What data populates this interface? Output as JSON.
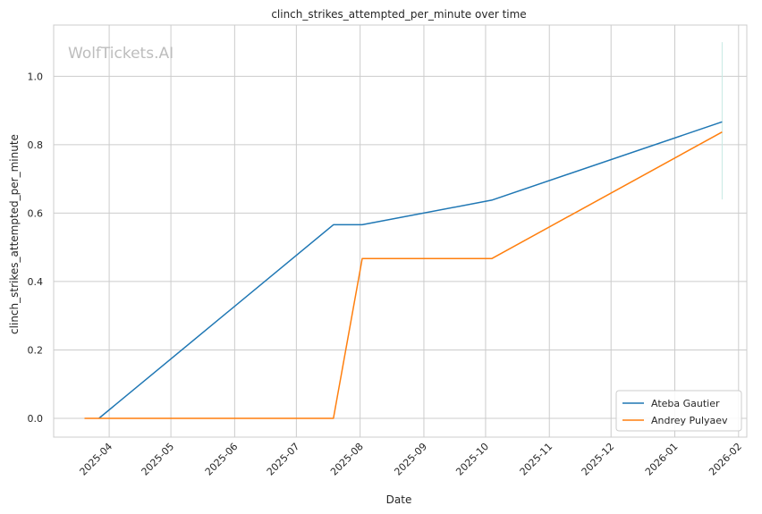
{
  "watermark": "WolfTickets.AI",
  "chart_data": {
    "type": "line",
    "title": "clinch_strikes_attempted_per_minute over time",
    "xlabel": "Date",
    "ylabel": "clinch_strikes_attempted_per_minute",
    "x_type": "date",
    "xlim": [
      "2025-03-05",
      "2026-02-05"
    ],
    "ylim": [
      -0.055,
      1.15
    ],
    "x_ticks": [
      "2025-04-01",
      "2025-05-01",
      "2025-06-01",
      "2025-07-01",
      "2025-08-01",
      "2025-09-01",
      "2025-10-01",
      "2025-11-01",
      "2025-12-01",
      "2026-01-01",
      "2026-02-01"
    ],
    "x_tick_labels": [
      "2025-04",
      "2025-05",
      "2025-06",
      "2025-07",
      "2025-08",
      "2025-09",
      "2025-10",
      "2025-11",
      "2025-12",
      "2026-01",
      "2026-02"
    ],
    "y_ticks": [
      0.0,
      0.2,
      0.4,
      0.6,
      0.8,
      1.0
    ],
    "y_tick_labels": [
      "0.0",
      "0.2",
      "0.4",
      "0.6",
      "0.8",
      "1.0"
    ],
    "grid": true,
    "legend_position": "bottom-right",
    "series": [
      {
        "name": "Ateba Gautier",
        "color": "#1f77b4",
        "points": [
          {
            "x": "2025-03-27",
            "y": 0.0
          },
          {
            "x": "2025-07-19",
            "y": 0.566
          },
          {
            "x": "2025-08-02",
            "y": 0.566
          },
          {
            "x": "2025-10-04",
            "y": 0.638
          },
          {
            "x": "2026-01-24",
            "y": 0.867
          }
        ]
      },
      {
        "name": "Andrey Pulyaev",
        "color": "#ff7f0e",
        "points": [
          {
            "x": "2025-03-20",
            "y": 0.0
          },
          {
            "x": "2025-07-19",
            "y": 0.0
          },
          {
            "x": "2025-08-02",
            "y": 0.467
          },
          {
            "x": "2025-10-04",
            "y": 0.467
          },
          {
            "x": "2026-01-24",
            "y": 0.837
          }
        ]
      }
    ],
    "vertical_marker": {
      "x": "2026-01-24",
      "y_range": [
        0.64,
        1.1
      ],
      "color": "#c7e9e3"
    }
  }
}
